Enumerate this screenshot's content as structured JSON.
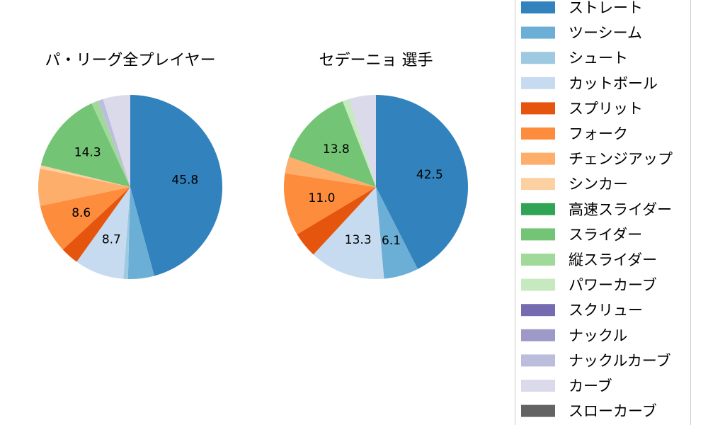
{
  "chart_data": [
    {
      "type": "pie",
      "title": "パ・リーグ全プレイヤー",
      "categories": [
        "ストレート",
        "ツーシーム",
        "シュート",
        "カットボール",
        "スプリット",
        "フォーク",
        "チェンジアップ",
        "シンカー",
        "高速スライダー",
        "スライダー",
        "縦スライダー",
        "パワーカーブ",
        "スクリュー",
        "ナックル",
        "ナックルカーブ",
        "カーブ",
        "スローカーブ"
      ],
      "values": [
        45.8,
        4.6,
        0.8,
        8.7,
        3.2,
        8.6,
        6.5,
        0.6,
        0.0,
        14.3,
        1.2,
        0.0,
        0.0,
        0.0,
        0.9,
        4.8,
        0.0
      ],
      "data_labels": [
        "45.8",
        "",
        "",
        "8.7",
        "",
        "8.6",
        "",
        "",
        "",
        "14.3",
        "",
        "",
        "",
        "",
        "",
        "",
        ""
      ]
    },
    {
      "type": "pie",
      "title": "セデーニョ 選手",
      "categories": [
        "ストレート",
        "ツーシーム",
        "シュート",
        "カットボール",
        "スプリット",
        "フォーク",
        "チェンジアップ",
        "シンカー",
        "高速スライダー",
        "スライダー",
        "縦スライダー",
        "パワーカーブ",
        "スクリュー",
        "ナックル",
        "ナックルカーブ",
        "カーブ",
        "スローカーブ"
      ],
      "values": [
        42.5,
        6.1,
        0.0,
        13.3,
        4.5,
        11.0,
        2.9,
        0.0,
        0.0,
        13.8,
        0.0,
        1.2,
        0.0,
        0.0,
        0.0,
        4.7,
        0.0
      ],
      "data_labels": [
        "42.5",
        "6.1",
        "",
        "13.3",
        "",
        "11.0",
        "",
        "",
        "",
        "13.8",
        "",
        "",
        "",
        "",
        "",
        "",
        ""
      ]
    }
  ],
  "legend": {
    "placement": "right",
    "items": [
      {
        "label": "ストレート",
        "color": "#3182bd"
      },
      {
        "label": "ツーシーム",
        "color": "#6baed6"
      },
      {
        "label": "シュート",
        "color": "#9ecae1"
      },
      {
        "label": "カットボール",
        "color": "#c6dbef"
      },
      {
        "label": "スプリット",
        "color": "#e6550d"
      },
      {
        "label": "フォーク",
        "color": "#fd8d3c"
      },
      {
        "label": "チェンジアップ",
        "color": "#fdae6b"
      },
      {
        "label": "シンカー",
        "color": "#fdd0a2"
      },
      {
        "label": "高速スライダー",
        "color": "#31a354"
      },
      {
        "label": "スライダー",
        "color": "#74c476"
      },
      {
        "label": "縦スライダー",
        "color": "#a1d99b"
      },
      {
        "label": "パワーカーブ",
        "color": "#c7e9c0"
      },
      {
        "label": "スクリュー",
        "color": "#756bb1"
      },
      {
        "label": "ナックル",
        "color": "#9e9ac8"
      },
      {
        "label": "ナックルカーブ",
        "color": "#bcbddc"
      },
      {
        "label": "カーブ",
        "color": "#dadaeb"
      },
      {
        "label": "スローカーブ",
        "color": "#636363"
      }
    ]
  }
}
